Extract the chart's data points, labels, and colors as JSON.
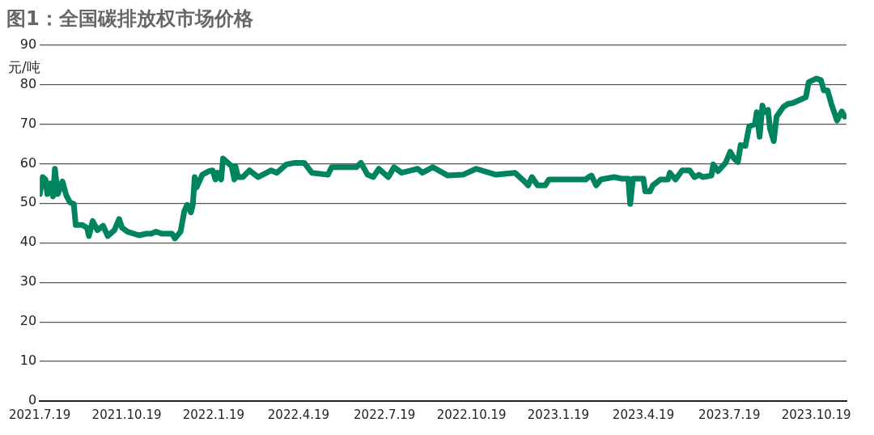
{
  "chart_data": {
    "type": "line",
    "title": "图1：全国碳排放权市场价格",
    "ylabel": "元/吨",
    "x": [
      "2021-07-19",
      "2021-07-22",
      "2021-07-25",
      "2021-07-27",
      "2021-07-30",
      "2021-08-02",
      "2021-08-04",
      "2021-08-07",
      "2021-08-12",
      "2021-08-16",
      "2021-08-20",
      "2021-08-24",
      "2021-08-26",
      "2021-09-02",
      "2021-09-07",
      "2021-09-09",
      "2021-09-13",
      "2021-09-18",
      "2021-09-24",
      "2021-09-29",
      "2021-10-06",
      "2021-10-11",
      "2021-10-14",
      "2021-10-20",
      "2021-11-01",
      "2021-11-09",
      "2021-11-14",
      "2021-11-19",
      "2021-11-25",
      "2021-12-06",
      "2021-12-09",
      "2021-12-15",
      "2021-12-19",
      "2021-12-22",
      "2021-12-26",
      "2021-12-28",
      "2021-12-30",
      "2022-01-01",
      "2022-01-07",
      "2022-01-14",
      "2022-01-18",
      "2022-01-21",
      "2022-01-23",
      "2022-01-27",
      "2022-01-29",
      "2022-02-07",
      "2022-02-10",
      "2022-02-11",
      "2022-02-14",
      "2022-02-19",
      "2022-02-26",
      "2022-03-07",
      "2022-03-21",
      "2022-03-27",
      "2022-04-06",
      "2022-04-15",
      "2022-04-25",
      "2022-05-03",
      "2022-05-20",
      "2022-05-24",
      "2022-06-19",
      "2022-06-24",
      "2022-07-01",
      "2022-07-07",
      "2022-07-13",
      "2022-07-23",
      "2022-07-29",
      "2022-08-06",
      "2022-08-23",
      "2022-08-28",
      "2022-09-08",
      "2022-09-24",
      "2022-10-10",
      "2022-10-24",
      "2022-11-14",
      "2022-12-04",
      "2022-12-14",
      "2022-12-18",
      "2022-12-22",
      "2022-12-28",
      "2023-01-05",
      "2023-01-09",
      "2023-01-18",
      "2023-02-17",
      "2023-02-20",
      "2023-02-23",
      "2023-02-28",
      "2023-03-05",
      "2023-03-19",
      "2023-03-27",
      "2023-04-03",
      "2023-04-05",
      "2023-04-08",
      "2023-04-19",
      "2023-04-21",
      "2023-04-26",
      "2023-04-29",
      "2023-05-07",
      "2023-05-15",
      "2023-05-17",
      "2023-05-23",
      "2023-05-30",
      "2023-06-07",
      "2023-06-12",
      "2023-06-17",
      "2023-06-21",
      "2023-06-30",
      "2023-07-02",
      "2023-07-07",
      "2023-07-15",
      "2023-07-20",
      "2023-07-24",
      "2023-07-28",
      "2023-07-31",
      "2023-08-05",
      "2023-08-09",
      "2023-08-15",
      "2023-08-17",
      "2023-08-20",
      "2023-08-23",
      "2023-08-25",
      "2023-08-29",
      "2023-08-31",
      "2023-09-04",
      "2023-09-07",
      "2023-09-14",
      "2023-09-19",
      "2023-09-24",
      "2023-10-08",
      "2023-10-11",
      "2023-10-19",
      "2023-10-24",
      "2023-10-27",
      "2023-10-31",
      "2023-11-04",
      "2023-11-10",
      "2023-11-15",
      "2023-11-18"
    ],
    "series": [
      {
        "color": "#00845f",
        "values": [
          52.3,
          56.6,
          56,
          52.3,
          55,
          51.7,
          58.7,
          52.3,
          55.5,
          52,
          50.2,
          49.8,
          44.5,
          44.5,
          43.8,
          41.7,
          45.5,
          43.2,
          44.3,
          41.7,
          43.2,
          46,
          43.8,
          42.8,
          41.9,
          42.3,
          42.3,
          42.8,
          42.3,
          42.3,
          41.1,
          42.8,
          48,
          49.6,
          47.7,
          49.6,
          56.6,
          54,
          57.2,
          58.1,
          58.3,
          56,
          57.7,
          56,
          61.3,
          59.4,
          56,
          59.4,
          56.6,
          56.6,
          58.3,
          56.6,
          58.3,
          57.7,
          59.8,
          60.2,
          60.2,
          57.7,
          57.2,
          59.1,
          59.1,
          60.2,
          57.2,
          56.6,
          58.7,
          56.6,
          59.1,
          57.7,
          58.7,
          57.7,
          59.1,
          57,
          57.2,
          58.7,
          57.2,
          57.7,
          55.5,
          54.5,
          56.6,
          54.5,
          54.5,
          56,
          56,
          56,
          56.6,
          57,
          54.5,
          56,
          56.6,
          56.2,
          56.2,
          49.8,
          56.2,
          56.2,
          53,
          53,
          54.5,
          56,
          56,
          57.7,
          56,
          58.3,
          58.3,
          56.6,
          57.2,
          56.6,
          57,
          59.8,
          58.1,
          60.2,
          63,
          61.3,
          60.4,
          64.7,
          64.5,
          69.4,
          70,
          73,
          66.8,
          74.7,
          73,
          73.6,
          68.9,
          65.7,
          71.9,
          74.3,
          75.1,
          75.3,
          76.8,
          80.6,
          81.5,
          81.1,
          78.5,
          78.5,
          75.1,
          70.9,
          73.2,
          71.9
        ]
      }
    ],
    "xlim": [
      "2021-07-19",
      "2023-11-20"
    ],
    "xticks": [
      {
        "value": "2021-07-19",
        "label": "2021.7.19"
      },
      {
        "value": "2021-10-19",
        "label": "2021.10.19"
      },
      {
        "value": "2022-01-19",
        "label": "2022.1.19"
      },
      {
        "value": "2022-04-19",
        "label": "2022.4.19"
      },
      {
        "value": "2022-07-19",
        "label": "2022.7.19"
      },
      {
        "value": "2022-10-19",
        "label": "2022.10.19"
      },
      {
        "value": "2023-01-19",
        "label": "2023.1.19"
      },
      {
        "value": "2023-04-19",
        "label": "2023.4.19"
      },
      {
        "value": "2023-07-19",
        "label": "2023.7.19"
      },
      {
        "value": "2023-10-19",
        "label": "2023.10.19"
      }
    ],
    "ylim": [
      0,
      90
    ],
    "yticks": [
      0,
      10,
      20,
      30,
      40,
      50,
      60,
      70,
      80,
      90
    ],
    "grid": "y",
    "legend": false,
    "marker": "none",
    "line_style": "solid"
  }
}
